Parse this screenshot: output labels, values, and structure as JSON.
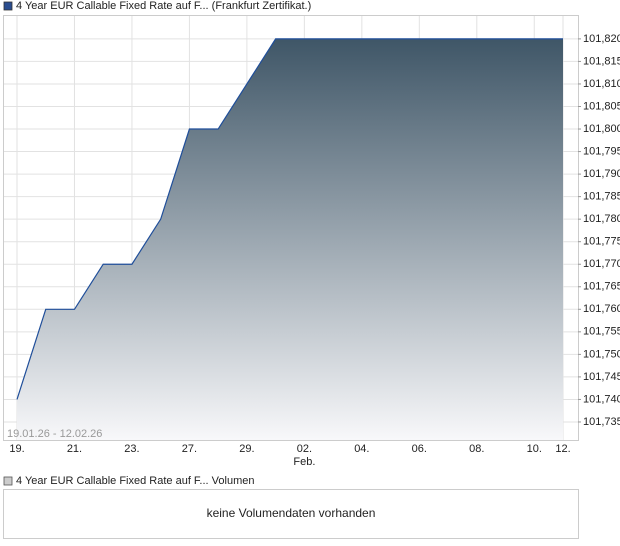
{
  "chart_data": {
    "type": "area",
    "title": "4 Year EUR Callable Fixed Rate auf F... (Frankfurt Zertifikat.)",
    "categories": [
      "19.",
      null,
      "21.",
      null,
      "23.",
      null,
      "27.",
      null,
      "29.",
      null,
      "02.",
      null,
      "04.",
      null,
      "06.",
      null,
      "08.",
      null,
      "10.",
      "12."
    ],
    "values": [
      101.74,
      101.76,
      101.76,
      101.77,
      101.77,
      101.78,
      101.8,
      101.8,
      101.81,
      101.82,
      101.82,
      101.82,
      101.82,
      101.82,
      101.82,
      101.82,
      101.82,
      101.82,
      101.82,
      101.82
    ],
    "month_label": "Feb.",
    "month_label_index": 10,
    "range_label": "19.01.26 - 12.02.26",
    "color": "#1f4e9a",
    "ylim": [
      101.731,
      101.8253
    ],
    "yticks": [
      {
        "value": 101.735,
        "label": "101,735"
      },
      {
        "value": 101.74,
        "label": "101,740"
      },
      {
        "value": 101.745,
        "label": "101,745"
      },
      {
        "value": 101.75,
        "label": "101,750"
      },
      {
        "value": 101.755,
        "label": "101,755"
      },
      {
        "value": 101.76,
        "label": "101,760"
      },
      {
        "value": 101.765,
        "label": "101,765"
      },
      {
        "value": 101.77,
        "label": "101,770"
      },
      {
        "value": 101.775,
        "label": "101,775"
      },
      {
        "value": 101.78,
        "label": "101,780"
      },
      {
        "value": 101.785,
        "label": "101,785"
      },
      {
        "value": 101.79,
        "label": "101,790"
      },
      {
        "value": 101.795,
        "label": "101,795"
      },
      {
        "value": 101.8,
        "label": "101,800"
      },
      {
        "value": 101.805,
        "label": "101,805"
      },
      {
        "value": 101.81,
        "label": "101,810"
      },
      {
        "value": 101.815,
        "label": "101,815"
      },
      {
        "value": 101.82,
        "label": "101,820"
      }
    ],
    "grid": true
  },
  "volume_panel": {
    "legend": "4 Year EUR Callable Fixed Rate auf F... Volumen",
    "message": "keine Volumendaten vorhanden"
  }
}
